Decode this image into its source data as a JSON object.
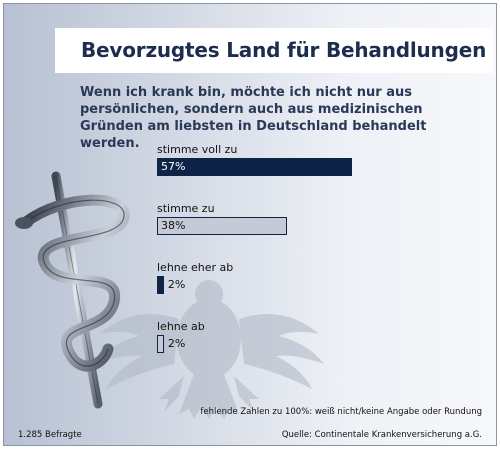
{
  "chart_data": {
    "type": "bar",
    "title": "Bevorzugtes Land für Behandlungen",
    "subtitle": "Wenn ich krank bin, möchte ich nicht nur aus persönlichen, sondern auch aus medizinischen Gründen am liebsten in Deutschland behandelt werden.",
    "categories": [
      "stimme voll zu",
      "stimme zu",
      "lehne eher ab",
      "lehne ab"
    ],
    "values": [
      57,
      38,
      2,
      2
    ],
    "value_labels": [
      "57%",
      "38%",
      "2%",
      "2%"
    ],
    "bar_styles": [
      "dark",
      "light",
      "dark",
      "light"
    ],
    "orientation": "horizontal",
    "xlim": [
      0,
      100
    ],
    "footnote": "fehlende Zahlen zu 100%: weiß nicht/keine Angabe oder Rundung",
    "sample": "1.285 Befragte",
    "source": "Quelle: Continentale Krankenversicherung a.G."
  },
  "colors": {
    "dark_bar": "#0f2346",
    "light_bar": "#c5cad6",
    "title": "#1c2d4f",
    "background_light": "#f7f8fb",
    "background_dark": "#b7c1d3"
  },
  "icons": [
    "aesculapian-staff-icon",
    "federal-eagle-icon"
  ]
}
